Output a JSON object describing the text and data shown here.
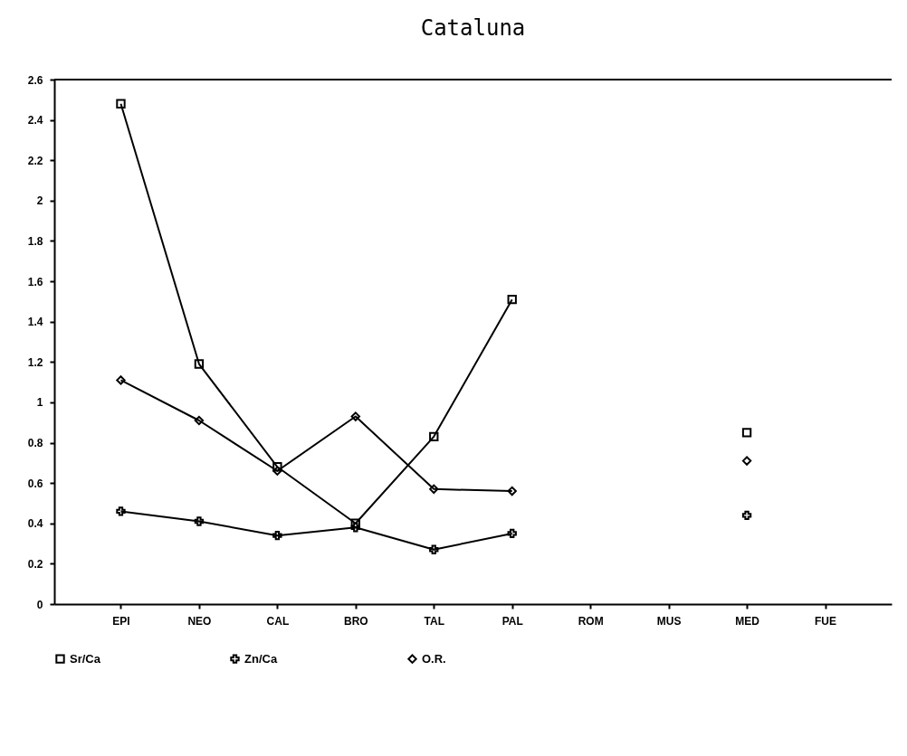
{
  "chart_data": {
    "type": "line",
    "title": "Cataluna",
    "categories": [
      "EPI",
      "NEO",
      "CAL",
      "BRO",
      "TAL",
      "PAL",
      "ROM",
      "MUS",
      "MED",
      "FUE"
    ],
    "series": [
      {
        "name": "Sr/Ca",
        "color": "#000000",
        "marker": "square",
        "values": [
          2.48,
          1.19,
          0.68,
          0.4,
          0.83,
          1.51,
          null,
          null,
          0.85,
          null
        ]
      },
      {
        "name": "Zn/Ca",
        "color": "#000000",
        "marker": "cross",
        "values": [
          0.46,
          0.41,
          0.34,
          0.38,
          0.27,
          0.35,
          null,
          null,
          0.44,
          null
        ]
      },
      {
        "name": "O.R.",
        "color": "#000000",
        "marker": "diamond",
        "values": [
          1.11,
          0.91,
          0.66,
          0.93,
          0.57,
          0.56,
          null,
          null,
          0.71,
          null
        ]
      }
    ],
    "ylim": [
      0,
      2.6
    ],
    "yticks": [
      0,
      0.2,
      0.4,
      0.6,
      0.8,
      1,
      1.2,
      1.4,
      1.6,
      1.8,
      2,
      2.2,
      2.4,
      2.6
    ],
    "grid": false,
    "legend": "bottom",
    "line_style": "solid"
  }
}
